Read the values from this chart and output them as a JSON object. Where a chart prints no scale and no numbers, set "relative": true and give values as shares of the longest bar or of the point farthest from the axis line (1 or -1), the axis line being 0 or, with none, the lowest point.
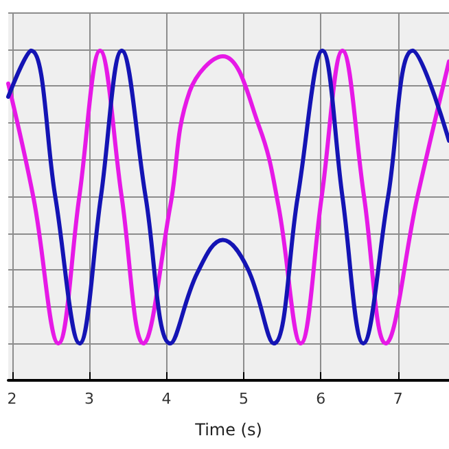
{
  "chart_data": {
    "type": "line",
    "xlabel": "Time (s)",
    "relative": true,
    "xlim": [
      1.95,
      7.66
    ],
    "xticks": [
      2,
      3,
      4,
      5,
      6,
      7
    ],
    "grid": true,
    "tick_labels": "x",
    "marker": "none",
    "line_style": "solid",
    "series": [
      {
        "color": "#e619e6",
        "x": [
          1.95,
          2.28,
          2.6,
          2.87,
          3.14,
          3.42,
          3.7,
          4.05,
          4.3,
          4.73,
          5.2,
          5.45,
          5.74,
          6.01,
          6.28,
          6.56,
          6.84,
          7.25,
          7.66
        ],
        "values": [
          0.9,
          0.55,
          0.112,
          0.556,
          1,
          0.556,
          0.112,
          0.53,
          0.876,
          0.983,
          0.77,
          0.53,
          0.112,
          0.556,
          1,
          0.556,
          0.112,
          0.556,
          0.967
        ]
      },
      {
        "color": "#1414b4",
        "x": [
          1.95,
          2.245,
          2.56,
          2.875,
          3.15,
          3.42,
          3.73,
          4.05,
          4.4,
          4.73,
          5.05,
          5.39,
          5.7,
          6.02,
          6.28,
          6.55,
          6.87,
          7.19,
          7.66
        ],
        "values": [
          0.86,
          1,
          0.556,
          0.112,
          0.556,
          1,
          0.556,
          0.112,
          0.326,
          0.426,
          0.34,
          0.112,
          0.556,
          1,
          0.556,
          0.112,
          0.556,
          1,
          0.727
        ]
      }
    ]
  }
}
